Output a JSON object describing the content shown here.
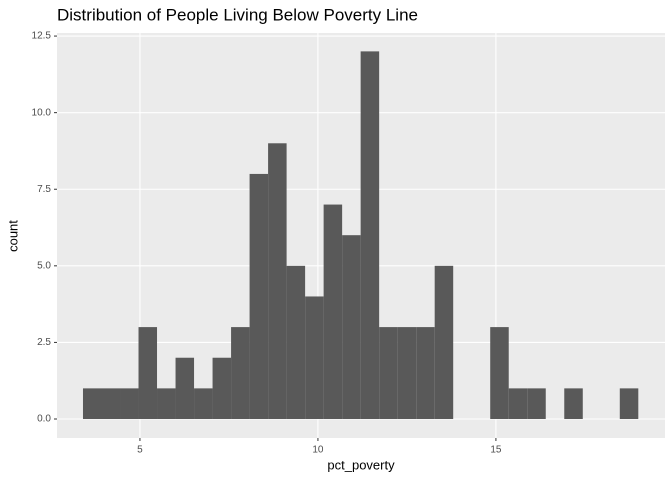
{
  "chart_data": {
    "type": "histogram",
    "title": "Distribution of People Living Below Poverty Line",
    "x_label": "pct_poverty",
    "y_label": "count",
    "bins": [
      3.4,
      3.92,
      4.44,
      4.96,
      5.48,
      6.0,
      6.52,
      7.04,
      7.56,
      8.08,
      8.6,
      9.12,
      9.64,
      10.16,
      10.68,
      11.2,
      11.72,
      12.24,
      12.76,
      13.28,
      13.8,
      14.32,
      14.84,
      15.36,
      15.88,
      16.4,
      16.92,
      17.44,
      17.96,
      18.48,
      19.0
    ],
    "values": [
      1,
      1,
      1,
      3,
      1,
      2,
      1,
      2,
      3,
      8,
      9,
      5,
      4,
      7,
      6,
      12,
      3,
      3,
      3,
      5,
      0,
      0,
      3,
      1,
      1,
      0,
      1,
      0,
      0,
      1
    ],
    "color": "#595959",
    "xlim": [
      2.67,
      19.75
    ],
    "xticks": [
      5,
      10,
      15
    ],
    "ylim": [
      -0.62,
      12.6
    ],
    "yticks": [
      {
        "value": 0,
        "label": "0.0"
      },
      2.5,
      {
        "value": 5,
        "label": "5.0"
      },
      7.5,
      {
        "value": 10,
        "label": "10.0"
      },
      12.5
    ],
    "grid": true
  }
}
